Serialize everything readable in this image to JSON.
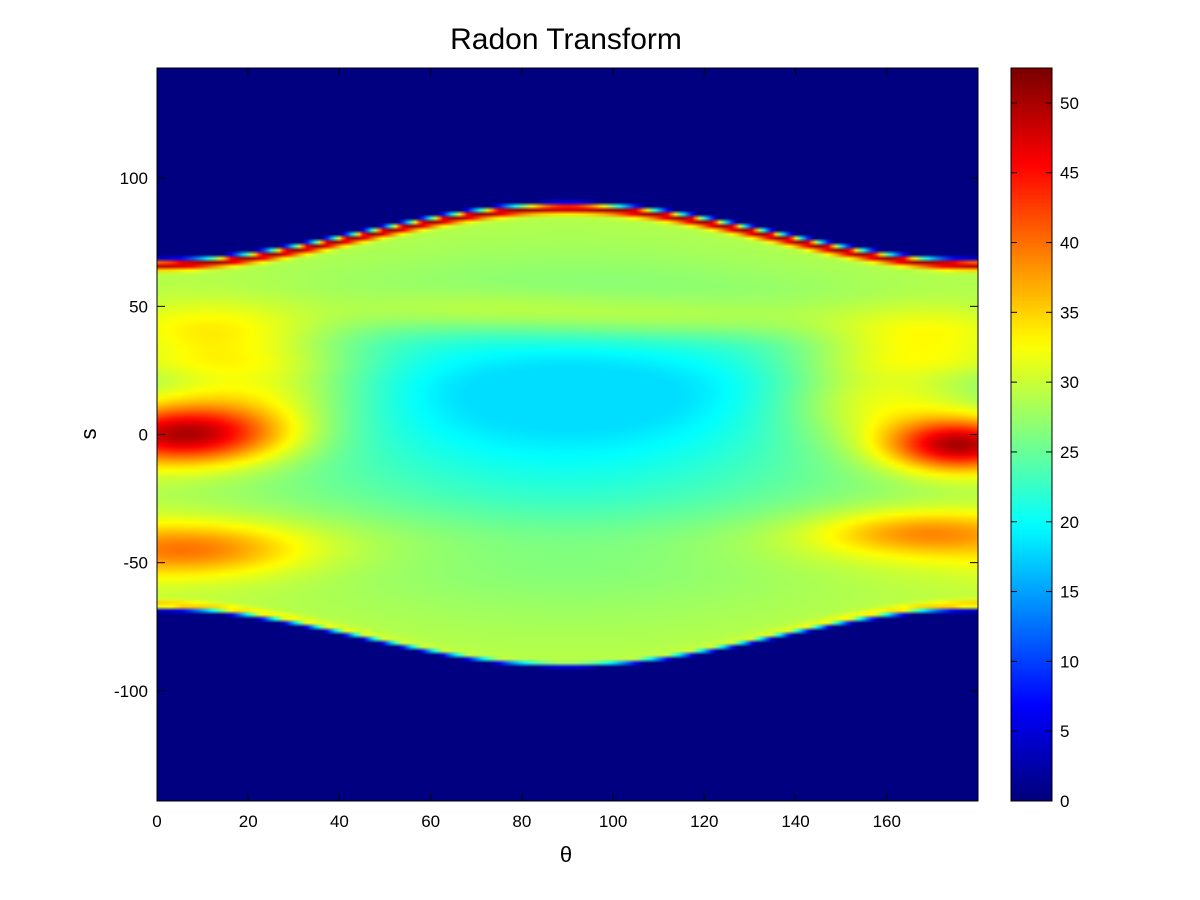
{
  "chart_data": {
    "type": "heatmap",
    "title": "Radon Transform",
    "xlabel": "θ",
    "ylabel": "s",
    "xlim": [
      0,
      180
    ],
    "ylim": [
      -143,
      143
    ],
    "x_ticks": [
      0,
      20,
      40,
      60,
      80,
      100,
      120,
      140,
      160
    ],
    "y_ticks": [
      100,
      50,
      0,
      -50,
      -100
    ],
    "colorbar": {
      "colormap": "jet",
      "range": [
        0,
        52.5
      ],
      "ticks": [
        0,
        5,
        10,
        15,
        20,
        25,
        30,
        35,
        40,
        45,
        50
      ]
    },
    "support_boundary": {
      "description": "nonzero region between s = ±(68 + 22·sin²θ)",
      "theta": [
        0,
        30,
        60,
        90,
        120,
        150,
        180
      ],
      "s_upper": [
        68,
        73.5,
        84.5,
        90,
        84.5,
        73.5,
        68
      ],
      "s_lower": [
        -68,
        -73.5,
        -84.5,
        -90,
        -84.5,
        -73.5,
        -68
      ]
    },
    "features": [
      {
        "label": "edge ridge",
        "theta_range": [
          0,
          180
        ],
        "value_max": 52
      },
      {
        "label": "left lobe",
        "theta": 5,
        "s": 0,
        "value": 50
      },
      {
        "label": "right lobe",
        "theta": 177,
        "s": -5,
        "value": 50
      },
      {
        "label": "central minimum",
        "theta": 90,
        "s": 0,
        "value": 21
      }
    ]
  }
}
